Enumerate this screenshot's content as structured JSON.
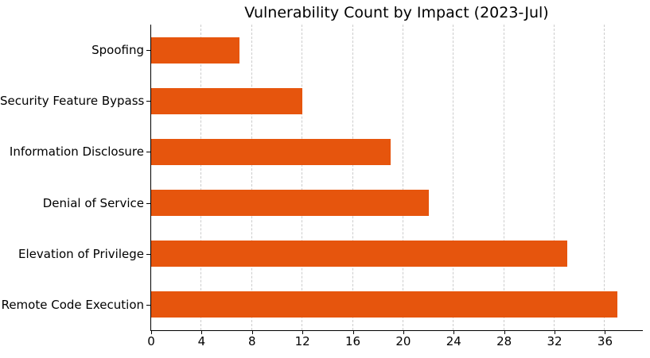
{
  "chart_data": {
    "type": "bar",
    "orientation": "horizontal",
    "title": "Vulnerability Count by Impact (2023-Jul)",
    "categories": [
      "Spoofing",
      "Security Feature Bypass",
      "Information Disclosure",
      "Denial of Service",
      "Elevation of Privilege",
      "Remote Code Execution"
    ],
    "categories_order": "top-to-bottom",
    "values": [
      7,
      12,
      19,
      22,
      33,
      37
    ],
    "xlabel": "",
    "ylabel": "",
    "x_ticks": [
      0,
      4,
      8,
      12,
      16,
      20,
      24,
      28,
      32,
      36
    ],
    "xlim": [
      0,
      39
    ],
    "grid": "vertical-dashed",
    "legend": "none",
    "colors": {
      "bar": "#e6550d",
      "grid": "#cccccc",
      "axis": "#000000",
      "text": "#000000",
      "background": "#ffffff"
    }
  }
}
